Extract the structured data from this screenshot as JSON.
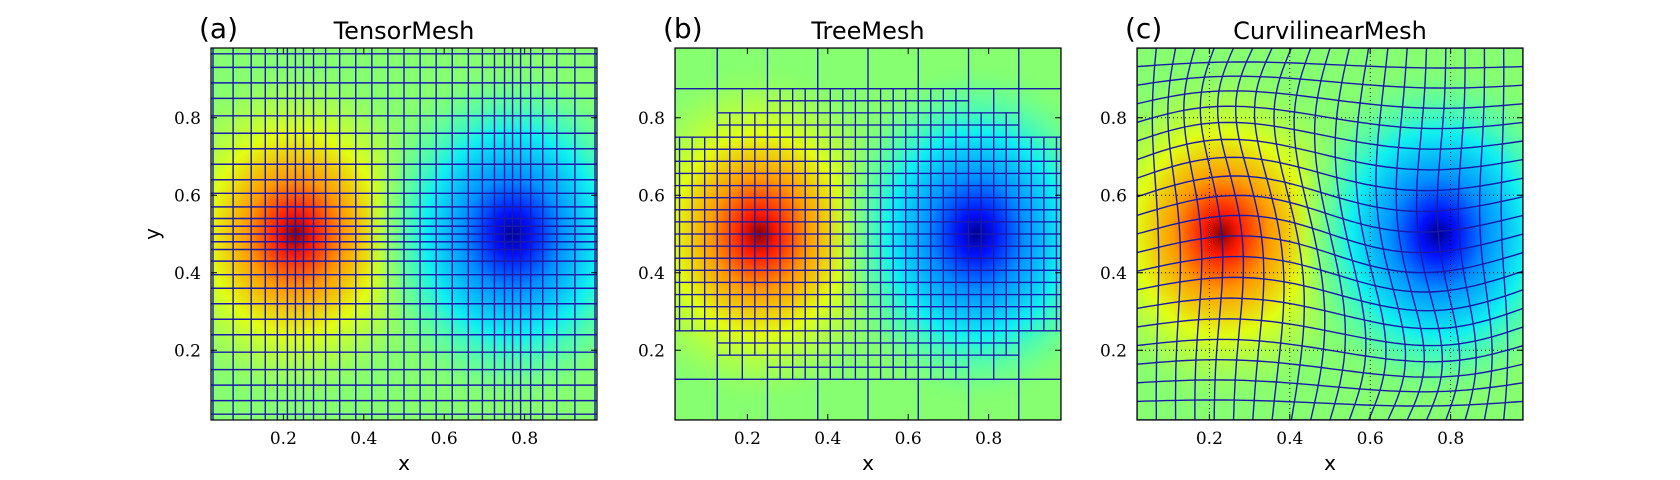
{
  "chart_data": [
    {
      "type": "heatmap",
      "panel_label": "(a)",
      "title": "TensorMesh",
      "xlabel": "x",
      "ylabel": "y",
      "xlim": [
        0.02,
        0.98
      ],
      "ylim": [
        0.02,
        0.98
      ],
      "xticks": [
        "0.2",
        "0.4",
        "0.6",
        "0.8"
      ],
      "yticks": [
        "0.2",
        "0.4",
        "0.6",
        "0.8"
      ],
      "sources": [
        {
          "x": 0.23,
          "y": 0.5,
          "polarity": "positive"
        },
        {
          "x": 0.77,
          "y": 0.5,
          "polarity": "negative"
        }
      ],
      "mesh_color": "#1a1aaa",
      "mesh": "tensor"
    },
    {
      "type": "heatmap",
      "panel_label": "(b)",
      "title": "TreeMesh",
      "xlabel": "x",
      "ylabel": "",
      "xlim": [
        0.02,
        0.98
      ],
      "ylim": [
        0.02,
        0.98
      ],
      "xticks": [
        "0.2",
        "0.4",
        "0.6",
        "0.8"
      ],
      "yticks": [
        "0.2",
        "0.4",
        "0.6",
        "0.8"
      ],
      "sources": [
        {
          "x": 0.23,
          "y": 0.5,
          "polarity": "positive"
        },
        {
          "x": 0.77,
          "y": 0.5,
          "polarity": "negative"
        }
      ],
      "mesh_color": "#1a1aaa",
      "mesh": "tree"
    },
    {
      "type": "heatmap",
      "panel_label": "(c)",
      "title": "CurvilinearMesh",
      "xlabel": "x",
      "ylabel": "",
      "xlim": [
        0.02,
        0.98
      ],
      "ylim": [
        0.02,
        0.98
      ],
      "xticks": [
        "0.2",
        "0.4",
        "0.6",
        "0.8"
      ],
      "yticks": [
        "0.2",
        "0.4",
        "0.6",
        "0.8"
      ],
      "sources": [
        {
          "x": 0.23,
          "y": 0.5,
          "polarity": "positive"
        },
        {
          "x": 0.77,
          "y": 0.5,
          "polarity": "negative"
        }
      ],
      "mesh_color": "#1a1aaa",
      "mesh": "curvilinear",
      "grid": "dotted"
    }
  ]
}
